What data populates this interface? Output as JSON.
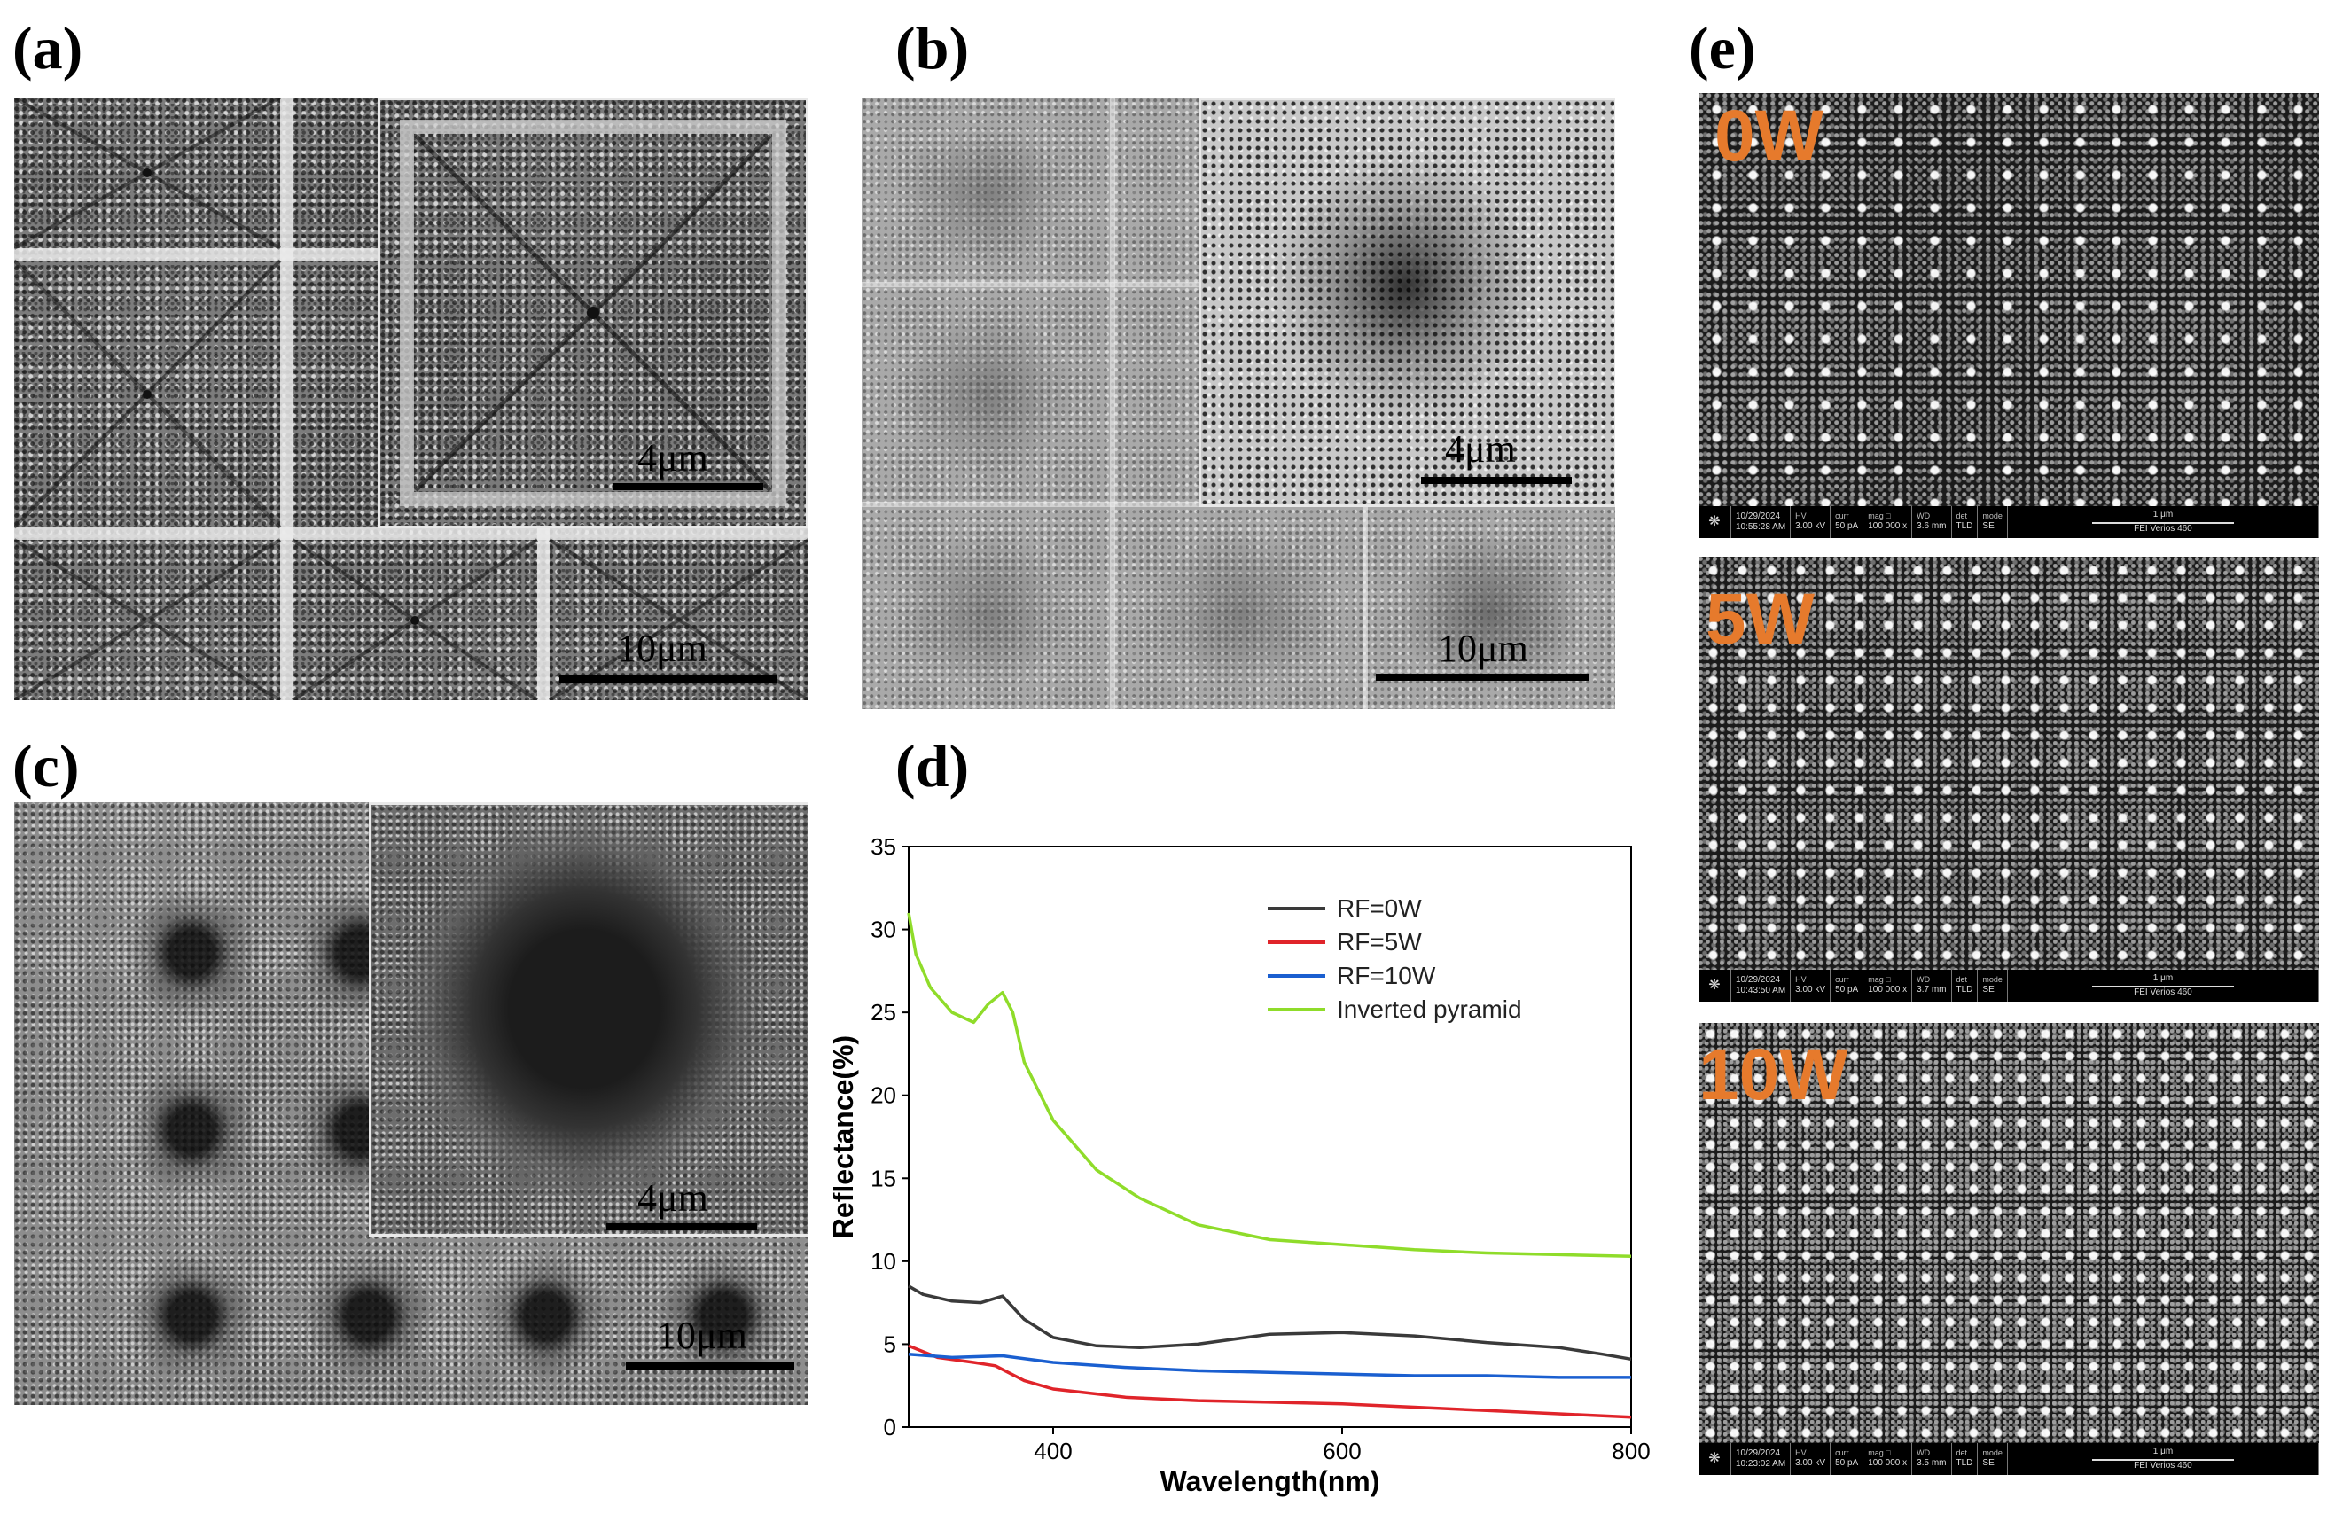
{
  "panels": {
    "a": {
      "label": "(a)",
      "scale_inset": "4μm",
      "scale_main": "10μm"
    },
    "b": {
      "label": "(b)",
      "scale_inset": "4μm",
      "scale_main": "10μm"
    },
    "c": {
      "label": "(c)",
      "scale_inset": "4μm",
      "scale_main": "10μm"
    },
    "d": {
      "label": "(d)"
    },
    "e": {
      "label": "(e)",
      "images": [
        {
          "power": "0W",
          "date": "10/29/2024",
          "time": "10:55:28 AM",
          "hv": "3.00 kV",
          "curr": "50 pA",
          "mag": "100 000 x",
          "wd": "3.6 mm",
          "det": "TLD",
          "mode": "SE",
          "scale": "1 μm",
          "instrument": "FEI Verios 460"
        },
        {
          "power": "5W",
          "date": "10/29/2024",
          "time": "10:43:50 AM",
          "hv": "3.00 kV",
          "curr": "50 pA",
          "mag": "100 000 x",
          "wd": "3.7 mm",
          "det": "TLD",
          "mode": "SE",
          "scale": "1 μm",
          "instrument": "FEI Verios 460"
        },
        {
          "power": "10W",
          "date": "10/29/2024",
          "time": "10:23:02 AM",
          "hv": "3.00 kV",
          "curr": "50 pA",
          "mag": "100 000 x",
          "wd": "3.5 mm",
          "det": "TLD",
          "mode": "SE",
          "scale": "1 μm",
          "instrument": "FEI Verios 460"
        }
      ],
      "info_keys": {
        "hv": "HV",
        "curr": "curr",
        "mag": "mag □",
        "wd": "WD",
        "det": "det",
        "mode": "mode"
      }
    }
  },
  "chart_data": {
    "type": "line",
    "xlabel": "Wavelength(nm)",
    "ylabel": "Reflectance(%)",
    "xlim": [
      300,
      800
    ],
    "ylim": [
      0,
      35
    ],
    "xticks": [
      400,
      600,
      800
    ],
    "yticks": [
      0,
      5,
      10,
      15,
      20,
      25,
      30,
      35
    ],
    "grid": false,
    "legend_position": "top-right",
    "series": [
      {
        "name": "RF=0W",
        "color": "#3a3a3a",
        "x": [
          300,
          310,
          330,
          350,
          365,
          380,
          400,
          430,
          460,
          500,
          550,
          600,
          650,
          700,
          750,
          780,
          800
        ],
        "y": [
          8.5,
          8.0,
          7.6,
          7.5,
          7.9,
          6.5,
          5.4,
          4.9,
          4.8,
          5.0,
          5.6,
          5.7,
          5.5,
          5.1,
          4.8,
          4.4,
          4.1
        ]
      },
      {
        "name": "RF=5W",
        "color": "#e0242a",
        "x": [
          300,
          320,
          345,
          360,
          380,
          400,
          450,
          500,
          550,
          600,
          650,
          700,
          750,
          800
        ],
        "y": [
          4.9,
          4.2,
          3.9,
          3.7,
          2.8,
          2.3,
          1.8,
          1.6,
          1.5,
          1.4,
          1.2,
          1.0,
          0.8,
          0.6
        ]
      },
      {
        "name": "RF=10W",
        "color": "#1a5fd0",
        "x": [
          300,
          330,
          365,
          400,
          450,
          500,
          550,
          600,
          650,
          700,
          750,
          800
        ],
        "y": [
          4.4,
          4.2,
          4.3,
          3.9,
          3.6,
          3.4,
          3.3,
          3.2,
          3.1,
          3.1,
          3.0,
          3.0
        ]
      },
      {
        "name": "Inverted pyramid",
        "color": "#8fdc2a",
        "x": [
          300,
          305,
          315,
          330,
          345,
          355,
          365,
          372,
          380,
          400,
          430,
          460,
          500,
          550,
          600,
          650,
          700,
          750,
          800
        ],
        "y": [
          31.0,
          28.5,
          26.5,
          25.0,
          24.4,
          25.5,
          26.2,
          25.0,
          22.0,
          18.5,
          15.5,
          13.8,
          12.2,
          11.3,
          11.0,
          10.7,
          10.5,
          10.4,
          10.3
        ]
      }
    ]
  }
}
